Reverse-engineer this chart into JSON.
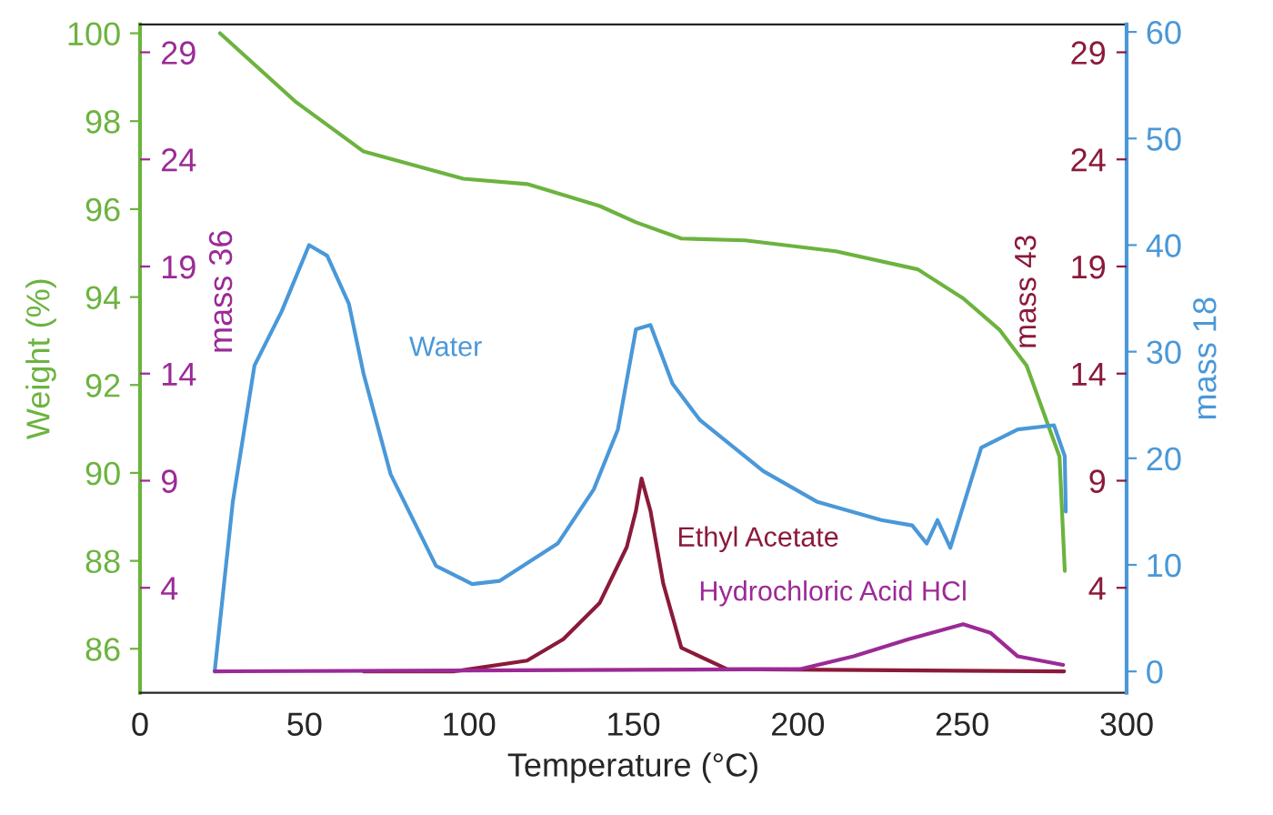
{
  "chart_data": {
    "type": "line",
    "xlabel": "Temperature (°C)",
    "ylabel": "Weight (%)",
    "y2label": "mass 18",
    "y3label": "mass 36",
    "annotations": [
      "mass 43",
      "4",
      "9",
      "14",
      "19",
      "24",
      "29"
    ],
    "xlim": [
      0,
      300
    ],
    "xticks": [
      0,
      50,
      100,
      150,
      200,
      250,
      300
    ],
    "ylim": [
      85,
      100.2
    ],
    "yticks": [
      86,
      88,
      90,
      92,
      94,
      96,
      98,
      100
    ],
    "y2lim": [
      -2,
      60.7
    ],
    "y2ticks": [
      0,
      10,
      20,
      30,
      40,
      50,
      60
    ],
    "y3lim": [
      -0.9,
      30.3
    ],
    "y3ticks": [
      4,
      9,
      14,
      19,
      24,
      29
    ],
    "grid": false,
    "legend": false,
    "marker": "none",
    "line_style": "solid",
    "series": [
      {
        "color": "#6cb33f",
        "axis": "y",
        "x": [
          24.3,
          47.5,
          68,
          98.3,
          117.7,
          139.8,
          150.8,
          164.6,
          184,
          211.6,
          236.5,
          250.3,
          261.3,
          269.6,
          279.6,
          281.2
        ],
        "values": [
          100,
          98.43,
          97.31,
          96.69,
          96.57,
          96.07,
          95.7,
          95.33,
          95.29,
          95.04,
          94.63,
          93.97,
          93.26,
          92.44,
          90.37,
          87.77
        ]
      },
      {
        "name": "Water",
        "color": "#4a98d8",
        "axis": "y2",
        "x": [
          22.7,
          28.2,
          34.8,
          43.1,
          51.4,
          56.9,
          63.5,
          68,
          76.2,
          90,
          101,
          109.4,
          127,
          138,
          145.3,
          150.8,
          155.2,
          161.9,
          170.2,
          189.5,
          206,
          225.4,
          234.8,
          239.2,
          242.5,
          246.4,
          255.8,
          266.9,
          277.9,
          281.2,
          281.5
        ],
        "values": [
          0,
          15.9,
          28.7,
          33.8,
          40,
          39,
          34.5,
          27.9,
          18.5,
          9.9,
          8.2,
          8.5,
          12,
          17.1,
          22.7,
          32.1,
          32.5,
          27,
          23.6,
          18.8,
          15.9,
          14.2,
          13.7,
          12,
          14.2,
          11.6,
          21,
          22.7,
          23.1,
          20.2,
          15
        ]
      },
      {
        "name": "Ethyl Acetate",
        "color": "#8b1a3a",
        "axis": "y3",
        "x": [
          68,
          95.6,
          117.7,
          128.7,
          139.8,
          148,
          150.8,
          152.5,
          155.2,
          159.1,
          164.6,
          178.5,
          281
        ],
        "values": [
          0.1,
          0.1,
          0.6,
          1.6,
          3.3,
          5.9,
          7.6,
          9.1,
          7.6,
          4.2,
          1.2,
          0.2,
          0.1
        ]
      },
      {
        "name": "Hydrochloric Acid HCl",
        "color": "#9b2a96",
        "axis": "y3",
        "x": [
          22.7,
          200.6,
          217,
          233.7,
          250.3,
          258.6,
          266.9,
          280.7
        ],
        "values": [
          0.1,
          0.2,
          0.8,
          1.6,
          2.3,
          1.9,
          0.8,
          0.4
        ]
      }
    ]
  }
}
